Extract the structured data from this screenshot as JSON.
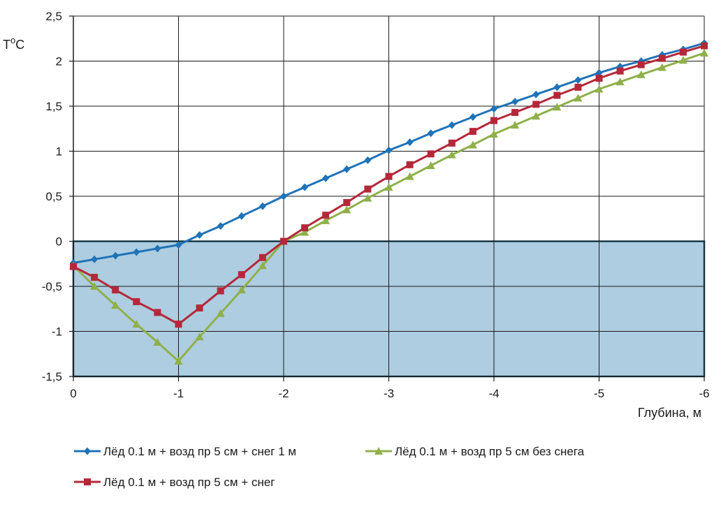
{
  "chart_data": {
    "type": "line",
    "xlabel": "Глубина, м",
    "ylabel_main": "T",
    "ylabel_sup": "o",
    "ylabel_unit": "C",
    "xlim": [
      0,
      -6
    ],
    "ylim": [
      -1.5,
      2.5
    ],
    "x_ticks": [
      0,
      -1,
      -2,
      -3,
      -4,
      -5,
      -6
    ],
    "x_tick_labels": [
      "0",
      "-1",
      "-2",
      "-3",
      "-4",
      "-5",
      "-6"
    ],
    "y_ticks": [
      -1.5,
      -1,
      -0.5,
      0,
      0.5,
      1,
      1.5,
      2,
      2.5
    ],
    "y_tick_labels": [
      "-1,5",
      "-1",
      "-0,5",
      "0",
      "0,5",
      "1",
      "1,5",
      "2",
      "2,5"
    ],
    "grid": true,
    "legend_position": "bottom",
    "region": {
      "y_from": -1.5,
      "y_to": 0,
      "x_from": 0,
      "x_to": -6,
      "color": "#aecde0",
      "border": "#1e4e66"
    },
    "x": [
      0,
      -0.2,
      -0.4,
      -0.6,
      -0.8,
      -1.0,
      -1.2,
      -1.4,
      -1.6,
      -1.8,
      -2.0,
      -2.2,
      -2.4,
      -2.6,
      -2.8,
      -3.0,
      -3.2,
      -3.4,
      -3.6,
      -3.8,
      -4.0,
      -4.2,
      -4.4,
      -4.6,
      -4.8,
      -5.0,
      -5.2,
      -5.4,
      -5.6,
      -5.8,
      -6.0
    ],
    "series": [
      {
        "name": "Лёд 0.1 м + возд пр 5 см + снег 1 м",
        "color": "#1f73b7",
        "marker": "diamond",
        "values": [
          -0.24,
          -0.2,
          -0.16,
          -0.12,
          -0.08,
          -0.04,
          0.07,
          0.17,
          0.28,
          0.39,
          0.5,
          0.6,
          0.7,
          0.8,
          0.9,
          1.01,
          1.1,
          1.2,
          1.29,
          1.38,
          1.47,
          1.55,
          1.63,
          1.71,
          1.79,
          1.87,
          1.94,
          2.0,
          2.07,
          2.13,
          2.2
        ]
      },
      {
        "name": "Лёд 0.1 м + возд пр 5 см без снега",
        "color": "#8fb04a",
        "marker": "triangle",
        "values": [
          -0.27,
          -0.5,
          -0.71,
          -0.92,
          -1.12,
          -1.33,
          -1.06,
          -0.8,
          -0.54,
          -0.27,
          0.0,
          0.1,
          0.23,
          0.35,
          0.48,
          0.6,
          0.72,
          0.84,
          0.96,
          1.07,
          1.19,
          1.29,
          1.39,
          1.49,
          1.59,
          1.69,
          1.77,
          1.85,
          1.93,
          2.01,
          2.09
        ]
      },
      {
        "name": "Лёд 0.1 м + возд пр 5 см + снег",
        "color": "#b5283a",
        "marker": "square",
        "values": [
          -0.28,
          -0.4,
          -0.54,
          -0.67,
          -0.79,
          -0.92,
          -0.74,
          -0.55,
          -0.37,
          -0.18,
          0.0,
          0.15,
          0.29,
          0.43,
          0.58,
          0.72,
          0.85,
          0.97,
          1.09,
          1.22,
          1.34,
          1.43,
          1.52,
          1.62,
          1.71,
          1.81,
          1.89,
          1.96,
          2.03,
          2.1,
          2.17
        ]
      }
    ]
  }
}
